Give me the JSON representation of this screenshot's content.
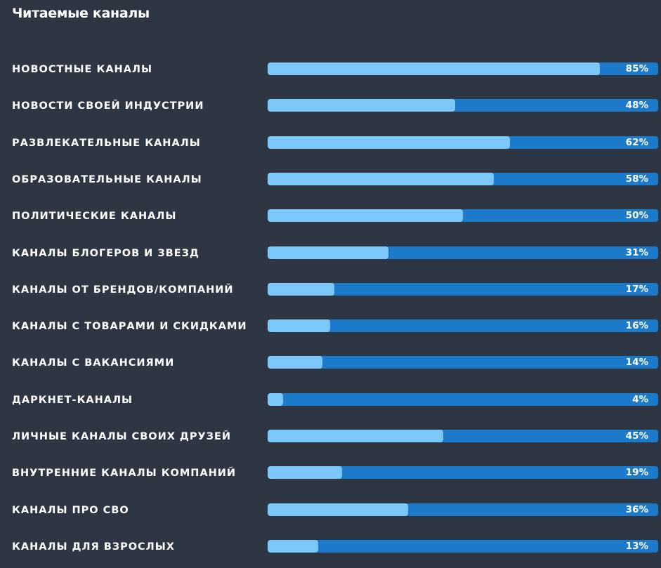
{
  "chart_data": {
    "type": "bar",
    "orientation": "horizontal",
    "title": "Читаемые каналы",
    "categories": [
      "НОВОСТНЫЕ КАНАЛЫ",
      "НОВОСТИ СВОЕЙ ИНДУСТРИИ",
      "РАЗВЛЕКАТЕЛЬНЫЕ КАНАЛЫ",
      "ОБРАЗОВАТЕЛЬНЫЕ КАНАЛЫ",
      "ПОЛИТИЧЕСКИЕ КАНАЛЫ",
      "КАНАЛЫ БЛОГЕРОВ И ЗВЕЗД",
      "КАНАЛЫ ОТ БРЕНДОВ/КОМПАНИЙ",
      "КАНАЛЫ С ТОВАРАМИ И СКИДКАМИ",
      "КАНАЛЫ С ВАКАНСИЯМИ",
      "ДАРКНЕТ-КАНАЛЫ",
      "ЛИЧНЫЕ КАНАЛЫ СВОИХ ДРУЗЕЙ",
      "ВНУТРЕННИЕ КАНАЛЫ КОМПАНИЙ",
      "КАНАЛЫ ПРО СВО",
      "КАНАЛЫ ДЛЯ ВЗРОСЛЫХ"
    ],
    "values": [
      85,
      48,
      62,
      58,
      50,
      31,
      17,
      16,
      14,
      4,
      45,
      19,
      36,
      13
    ],
    "value_labels": [
      "85%",
      "48%",
      "62%",
      "58%",
      "50%",
      "31%",
      "17%",
      "16%",
      "14%",
      "4%",
      "45%",
      "19%",
      "36%",
      "13%"
    ],
    "xlim": [
      0,
      100
    ],
    "grid": false,
    "colors": {
      "background": "#2f3643",
      "bar_track": "#1b7ac9",
      "bar_fill": "#7dc8fb",
      "text": "#ffffff"
    }
  }
}
